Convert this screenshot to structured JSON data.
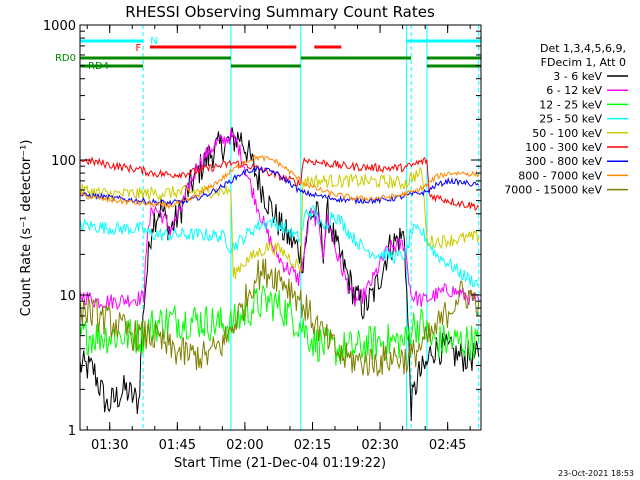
{
  "chart_data": {
    "type": "line",
    "title": "RHESSI Observing Summary Count Rates",
    "xlabel": "Start Time (21-Dec-04 01:19:22)",
    "ylabel": "Count Rate (s⁻¹ detector⁻¹)",
    "footer": "23-Oct-2021 18:53",
    "x_unit": "minutes after 01:19:22",
    "xlim": [
      4,
      93
    ],
    "ylim": [
      1,
      1000
    ],
    "y_scale": "log",
    "x_ticks": [
      "01:30",
      "01:45",
      "02:00",
      "02:15",
      "02:30",
      "02:45"
    ],
    "x_tick_times": [
      "01:30",
      "01:45",
      "02:00",
      "02:15",
      "02:30",
      "02:45"
    ],
    "x_tick_minutes": [
      10.6,
      25.6,
      40.6,
      55.6,
      70.6,
      85.6
    ],
    "y_ticks": [
      "1",
      "10",
      "100",
      "1000"
    ],
    "y_tick_values": [
      1,
      10,
      100,
      1000
    ],
    "legend_header": [
      "Det 1,3,4,5,6,9,",
      "FDecim 1, Att 0"
    ],
    "legend_position": "right",
    "flags": {
      "labels": [
        "N",
        "F",
        "RD0",
        "RD4"
      ],
      "N": {
        "color": "#00ffff",
        "segments": [
          [
            4,
            18
          ],
          [
            76.5,
            93
          ]
        ]
      },
      "F": {
        "color": "#ff0000",
        "segments": [
          [
            19.5,
            52
          ],
          [
            56,
            62
          ]
        ]
      },
      "RD0": {
        "color": "#008800",
        "segments": [
          [
            4,
            37.5
          ],
          [
            53,
            77.5
          ],
          [
            81,
            93
          ]
        ]
      },
      "RD4": {
        "color": "#008800",
        "segments": [
          [
            4,
            18
          ],
          [
            37.5,
            53
          ],
          [
            81,
            93
          ]
        ]
      }
    },
    "vlines_dashed": [
      18,
      77.5,
      92.5
    ],
    "vlines_solid": [
      37.5,
      53,
      76.5,
      81
    ],
    "series": [
      {
        "name": "3 - 6 keV",
        "color": "#000000",
        "points": [
          [
            4,
            3
          ],
          [
            7,
            2.8
          ],
          [
            10,
            1.5
          ],
          [
            14,
            2
          ],
          [
            17,
            1.6
          ],
          [
            18.2,
            9
          ],
          [
            20,
            35
          ],
          [
            22,
            45
          ],
          [
            24,
            30
          ],
          [
            26,
            40
          ],
          [
            28,
            60
          ],
          [
            30,
            80
          ],
          [
            32,
            100
          ],
          [
            34,
            120
          ],
          [
            36,
            130
          ],
          [
            38,
            140
          ],
          [
            39.5,
            150
          ],
          [
            41,
            120
          ],
          [
            43,
            80
          ],
          [
            45,
            55
          ],
          [
            47,
            40
          ],
          [
            49,
            30
          ],
          [
            51,
            25
          ],
          [
            52.5,
            22
          ],
          [
            53.5,
            18
          ],
          [
            55,
            40
          ],
          [
            57,
            38
          ],
          [
            58,
            22
          ],
          [
            59,
            40
          ],
          [
            61,
            22
          ],
          [
            63,
            15
          ],
          [
            65,
            10
          ],
          [
            67,
            8
          ],
          [
            69,
            10
          ],
          [
            71,
            15
          ],
          [
            72.5,
            22
          ],
          [
            74,
            25
          ],
          [
            76,
            28
          ],
          [
            77.5,
            1.5
          ],
          [
            79,
            2.5
          ],
          [
            81,
            3
          ],
          [
            82,
            4
          ],
          [
            85,
            4
          ],
          [
            88,
            3.5
          ],
          [
            91,
            3.5
          ],
          [
            92.5,
            3.5
          ]
        ]
      },
      {
        "name": "6 - 12 keV",
        "color": "#ff00ff",
        "points": [
          [
            4,
            10
          ],
          [
            8,
            9
          ],
          [
            12,
            9
          ],
          [
            17,
            9.5
          ],
          [
            18.2,
            9.5
          ],
          [
            18.5,
            20
          ],
          [
            20,
            45
          ],
          [
            22,
            40
          ],
          [
            24,
            30
          ],
          [
            26,
            40
          ],
          [
            28,
            60
          ],
          [
            30,
            90
          ],
          [
            32,
            110
          ],
          [
            34,
            130
          ],
          [
            36,
            140
          ],
          [
            37.5,
            150
          ],
          [
            39,
            130
          ],
          [
            41,
            80
          ],
          [
            43,
            50
          ],
          [
            45,
            32
          ],
          [
            47,
            22
          ],
          [
            49,
            17
          ],
          [
            51,
            15
          ],
          [
            52.5,
            13
          ],
          [
            53.5,
            18
          ],
          [
            55,
            40
          ],
          [
            57,
            35
          ],
          [
            58,
            20
          ],
          [
            59,
            38
          ],
          [
            61,
            20
          ],
          [
            63,
            13
          ],
          [
            65,
            9
          ],
          [
            67,
            10
          ],
          [
            69,
            13
          ],
          [
            71,
            18
          ],
          [
            72.5,
            22
          ],
          [
            74,
            23
          ],
          [
            76,
            24
          ],
          [
            77.5,
            10
          ],
          [
            80,
            9
          ],
          [
            83,
            10
          ],
          [
            86,
            11
          ],
          [
            89,
            10
          ],
          [
            92.5,
            9
          ]
        ]
      },
      {
        "name": "12 - 25 keV",
        "color": "#00ff00",
        "points": [
          [
            4,
            5
          ],
          [
            10,
            5
          ],
          [
            17,
            5
          ],
          [
            18.2,
            5
          ],
          [
            20,
            6
          ],
          [
            24,
            6.5
          ],
          [
            30,
            6.5
          ],
          [
            36,
            6
          ],
          [
            37.5,
            6
          ],
          [
            40,
            7
          ],
          [
            43,
            8.5
          ],
          [
            46,
            9
          ],
          [
            49,
            8
          ],
          [
            52,
            6.5
          ],
          [
            53,
            6
          ],
          [
            56,
            4.5
          ],
          [
            60,
            4
          ],
          [
            65,
            4
          ],
          [
            70,
            4.5
          ],
          [
            74,
            4.5
          ],
          [
            76.5,
            4.5
          ],
          [
            77.5,
            6
          ],
          [
            80,
            6
          ],
          [
            82,
            4.5
          ],
          [
            85,
            4.5
          ],
          [
            88,
            4.5
          ],
          [
            92.5,
            4.5
          ]
        ]
      },
      {
        "name": "25 - 50 keV",
        "color": "#00ffff",
        "points": [
          [
            4,
            33
          ],
          [
            8,
            32
          ],
          [
            12,
            31
          ],
          [
            17,
            31
          ],
          [
            18.2,
            30
          ],
          [
            20,
            28
          ],
          [
            24,
            28
          ],
          [
            28,
            28
          ],
          [
            32,
            28
          ],
          [
            36,
            27
          ],
          [
            37.5,
            22
          ],
          [
            40,
            26
          ],
          [
            43,
            32
          ],
          [
            46,
            35
          ],
          [
            49,
            32
          ],
          [
            52,
            27
          ],
          [
            53,
            26
          ],
          [
            54,
            40
          ],
          [
            56,
            42
          ],
          [
            58,
            30
          ],
          [
            60,
            40
          ],
          [
            62,
            35
          ],
          [
            64,
            28
          ],
          [
            67,
            22
          ],
          [
            70,
            20
          ],
          [
            72,
            20
          ],
          [
            74,
            19
          ],
          [
            76.5,
            20
          ],
          [
            77.5,
            30
          ],
          [
            80,
            29
          ],
          [
            83,
            20
          ],
          [
            86,
            17
          ],
          [
            89,
            14
          ],
          [
            92.5,
            12
          ]
        ]
      },
      {
        "name": "50 - 100 keV",
        "color": "#cccc00",
        "points": [
          [
            4,
            60
          ],
          [
            10,
            56
          ],
          [
            17,
            56
          ],
          [
            18.2,
            56
          ],
          [
            22,
            57
          ],
          [
            28,
            58
          ],
          [
            34,
            59
          ],
          [
            37.5,
            59
          ],
          [
            38,
            14
          ],
          [
            40,
            17
          ],
          [
            43,
            20
          ],
          [
            46,
            23
          ],
          [
            49,
            21
          ],
          [
            52,
            17
          ],
          [
            53,
            16
          ],
          [
            53.5,
            70
          ],
          [
            60,
            70
          ],
          [
            66,
            70
          ],
          [
            72,
            69
          ],
          [
            76.5,
            67
          ],
          [
            77.5,
            75
          ],
          [
            80,
            80
          ],
          [
            81,
            25
          ],
          [
            84,
            25
          ],
          [
            88,
            26
          ],
          [
            92.5,
            27
          ]
        ]
      },
      {
        "name": "100 - 300 keV",
        "color": "#ff0000",
        "points": [
          [
            4,
            100
          ],
          [
            8,
            96
          ],
          [
            12,
            90
          ],
          [
            17,
            85
          ],
          [
            20,
            80
          ],
          [
            24,
            78
          ],
          [
            28,
            80
          ],
          [
            32,
            86
          ],
          [
            36,
            92
          ],
          [
            38,
            95
          ],
          [
            41,
            92
          ],
          [
            44,
            85
          ],
          [
            47,
            78
          ],
          [
            50,
            72
          ],
          [
            53,
            67
          ],
          [
            53.5,
            100
          ],
          [
            58,
            95
          ],
          [
            63,
            90
          ],
          [
            68,
            88
          ],
          [
            72,
            87
          ],
          [
            76.5,
            88
          ],
          [
            79,
            95
          ],
          [
            81,
            100
          ],
          [
            81.5,
            55
          ],
          [
            84,
            52
          ],
          [
            88,
            48
          ],
          [
            92.5,
            45
          ]
        ]
      },
      {
        "name": "300 - 800 keV",
        "color": "#0000ff",
        "points": [
          [
            4,
            55
          ],
          [
            8,
            54
          ],
          [
            12,
            52
          ],
          [
            17,
            50
          ],
          [
            20,
            49
          ],
          [
            24,
            48
          ],
          [
            28,
            50
          ],
          [
            32,
            55
          ],
          [
            36,
            65
          ],
          [
            40,
            80
          ],
          [
            43,
            86
          ],
          [
            47,
            82
          ],
          [
            50,
            70
          ],
          [
            53,
            58
          ],
          [
            56,
            55
          ],
          [
            60,
            52
          ],
          [
            65,
            50
          ],
          [
            70,
            50
          ],
          [
            74,
            52
          ],
          [
            78,
            56
          ],
          [
            81,
            58
          ],
          [
            83,
            65
          ],
          [
            86,
            70
          ],
          [
            89,
            68
          ],
          [
            92.5,
            65
          ]
        ]
      },
      {
        "name": "800 - 7000 keV",
        "color": "#ff8800",
        "points": [
          [
            4,
            55
          ],
          [
            8,
            52
          ],
          [
            12,
            50
          ],
          [
            17,
            48
          ],
          [
            20,
            47
          ],
          [
            24,
            46
          ],
          [
            28,
            50
          ],
          [
            32,
            60
          ],
          [
            36,
            75
          ],
          [
            40,
            95
          ],
          [
            43,
            105
          ],
          [
            47,
            100
          ],
          [
            50,
            85
          ],
          [
            53,
            70
          ],
          [
            56,
            62
          ],
          [
            60,
            56
          ],
          [
            65,
            52
          ],
          [
            70,
            52
          ],
          [
            74,
            54
          ],
          [
            78,
            58
          ],
          [
            81,
            65
          ],
          [
            83,
            75
          ],
          [
            86,
            80
          ],
          [
            89,
            80
          ],
          [
            92.5,
            78
          ]
        ]
      },
      {
        "name": "7000 - 15000 keV",
        "color": "#808000",
        "points": [
          [
            4,
            8
          ],
          [
            8,
            7
          ],
          [
            12,
            6
          ],
          [
            16,
            5
          ],
          [
            20,
            5
          ],
          [
            24,
            4
          ],
          [
            28,
            3.6
          ],
          [
            32,
            3.5
          ],
          [
            36,
            4.5
          ],
          [
            40,
            8
          ],
          [
            43,
            14
          ],
          [
            46,
            15
          ],
          [
            49,
            13
          ],
          [
            52,
            10
          ],
          [
            54,
            8
          ],
          [
            58,
            5
          ],
          [
            62,
            3.5
          ],
          [
            66,
            3.2
          ],
          [
            70,
            3.2
          ],
          [
            74,
            3.5
          ],
          [
            77,
            3.3
          ],
          [
            79,
            4
          ],
          [
            82,
            5
          ],
          [
            85,
            7
          ],
          [
            88,
            10
          ],
          [
            90,
            10
          ],
          [
            92.5,
            9
          ]
        ]
      }
    ]
  }
}
